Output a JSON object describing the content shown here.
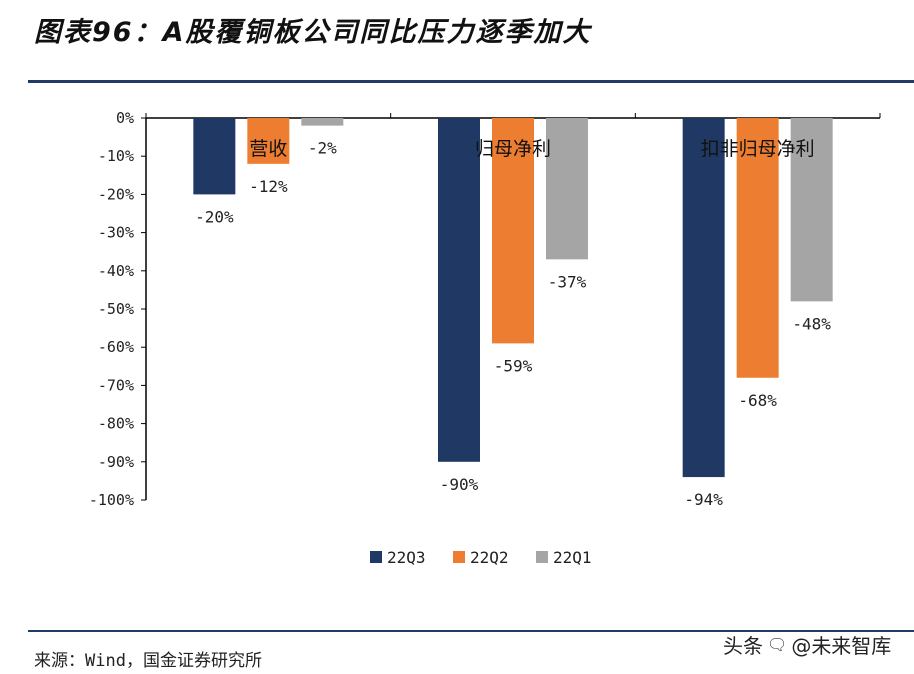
{
  "title": "图表96：A股覆铜板公司同比压力逐季加大",
  "source": "来源：Wind，国金证券研究所",
  "watermark": {
    "prefix": "头条",
    "name": "@未来智库",
    "icon": "wechat-bubble-icon"
  },
  "colors": {
    "rule": "#1f3b66",
    "series": [
      "#1f3864",
      "#ed7d31",
      "#a5a5a5"
    ]
  },
  "chart_data": {
    "type": "bar",
    "categories": [
      "营收",
      "归母净利",
      "扣非归母净利"
    ],
    "series": [
      {
        "name": "22Q3",
        "values": [
          -20,
          -90,
          -94
        ]
      },
      {
        "name": "22Q2",
        "values": [
          -12,
          -59,
          -68
        ]
      },
      {
        "name": "22Q1",
        "values": [
          -2,
          -37,
          -48
        ]
      }
    ],
    "data_labels": [
      [
        "-20%",
        "-12%",
        "-2%"
      ],
      [
        "-90%",
        "-59%",
        "-37%"
      ],
      [
        "-94%",
        "-68%",
        "-48%"
      ]
    ],
    "ylim": [
      -100,
      0
    ],
    "y_ticks": [
      0,
      -10,
      -20,
      -30,
      -40,
      -50,
      -60,
      -70,
      -80,
      -90,
      -100
    ],
    "y_tick_labels": [
      "0%",
      "-10%",
      "-20%",
      "-30%",
      "-40%",
      "-50%",
      "-60%",
      "-70%",
      "-80%",
      "-90%",
      "-100%"
    ],
    "xlabel": "",
    "ylabel": "",
    "grid": false,
    "legend_position": "bottom"
  }
}
